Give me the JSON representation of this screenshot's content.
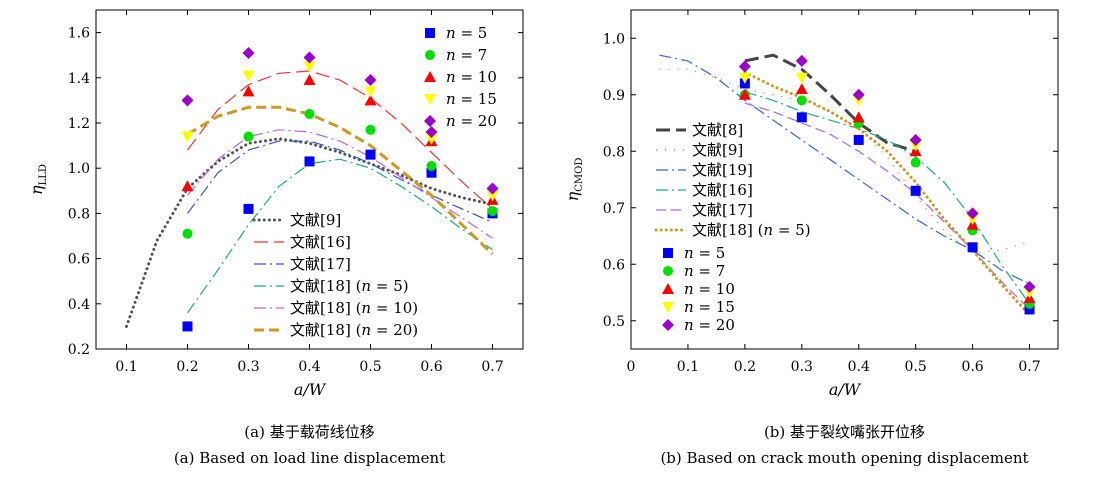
{
  "chart_data": [
    {
      "type": "scatter",
      "xlabel": "a/W",
      "ylabel": "η_LLD",
      "ylabel_main": "η",
      "ylabel_sub": "LLD",
      "xlim": [
        0.05,
        0.75
      ],
      "ylim": [
        0.2,
        1.7
      ],
      "xticks": [
        "0.1",
        "0.2",
        "0.3",
        "0.4",
        "0.5",
        "0.6",
        "0.7"
      ],
      "yticks": [
        "0.2",
        "0.4",
        "0.6",
        "0.8",
        "1.0",
        "1.2",
        "1.4",
        "1.6"
      ],
      "grid": false,
      "caption_cn": "(a) 基于载荷线位移",
      "caption_en": "(a) Based on load line displacement",
      "markers": [
        {
          "name": "n = 5",
          "label_var": "n",
          "label_val": "5",
          "shape": "square",
          "color": "#0000ff",
          "x": [
            0.2,
            0.3,
            0.4,
            0.5,
            0.6,
            0.7
          ],
          "y": [
            0.3,
            0.82,
            1.03,
            1.06,
            0.98,
            0.8
          ]
        },
        {
          "name": "n = 7",
          "label_var": "n",
          "label_val": "7",
          "shape": "circle",
          "color": "#00dd00",
          "x": [
            0.2,
            0.3,
            0.4,
            0.5,
            0.6,
            0.7
          ],
          "y": [
            0.71,
            1.14,
            1.24,
            1.17,
            1.01,
            0.81
          ]
        },
        {
          "name": "n = 10",
          "label_var": "n",
          "label_val": "10",
          "shape": "triangle",
          "color": "#ff0000",
          "x": [
            0.2,
            0.3,
            0.4,
            0.5,
            0.6,
            0.7
          ],
          "y": [
            0.92,
            1.34,
            1.39,
            1.3,
            1.12,
            0.86
          ]
        },
        {
          "name": "n = 15",
          "label_var": "n",
          "label_val": "15",
          "shape": "triangle-down",
          "color": "#ffff00",
          "x": [
            0.2,
            0.3,
            0.4,
            0.5,
            0.6,
            0.7
          ],
          "y": [
            1.14,
            1.41,
            1.45,
            1.34,
            1.13,
            0.88
          ]
        },
        {
          "name": "n = 20",
          "label_var": "n",
          "label_val": "20",
          "shape": "diamond",
          "color": "#9900cc",
          "x": [
            0.2,
            0.3,
            0.4,
            0.5,
            0.6,
            0.7
          ],
          "y": [
            1.3,
            1.51,
            1.49,
            1.39,
            1.16,
            0.91
          ]
        }
      ],
      "lines": [
        {
          "name": "文献[9]",
          "ref": "文献[9]",
          "suffix_var": "",
          "suffix_val": "",
          "color": "#555555",
          "style": "dotted",
          "width": 3,
          "x": [
            0.1,
            0.15,
            0.2,
            0.25,
            0.3,
            0.35,
            0.4,
            0.45,
            0.5,
            0.55,
            0.6,
            0.65,
            0.7
          ],
          "y": [
            0.3,
            0.68,
            0.91,
            1.03,
            1.11,
            1.13,
            1.11,
            1.07,
            1.02,
            0.97,
            0.91,
            0.87,
            0.84
          ]
        },
        {
          "name": "文献[16]",
          "ref": "文献[16]",
          "suffix_var": "",
          "suffix_val": "",
          "color": "#ee3333",
          "style": "longdash",
          "width": 1.2,
          "x": [
            0.2,
            0.25,
            0.3,
            0.35,
            0.4,
            0.45,
            0.5,
            0.55,
            0.6,
            0.65,
            0.7
          ],
          "y": [
            1.08,
            1.26,
            1.37,
            1.42,
            1.43,
            1.39,
            1.31,
            1.2,
            1.07,
            0.94,
            0.82
          ]
        },
        {
          "name": "文献[17]",
          "ref": "文献[17]",
          "suffix_var": "",
          "suffix_val": "",
          "color": "#3355cc",
          "style": "dashdot",
          "width": 1.2,
          "x": [
            0.2,
            0.25,
            0.3,
            0.35,
            0.4,
            0.45,
            0.5,
            0.55,
            0.6,
            0.65,
            0.7
          ],
          "y": [
            0.8,
            0.98,
            1.08,
            1.12,
            1.12,
            1.08,
            1.02,
            0.95,
            0.88,
            0.82,
            0.76
          ]
        },
        {
          "name": "文献[18] (n = 5)",
          "ref": "文献[18]",
          "suffix_var": "n",
          "suffix_val": "5",
          "color": "#22aa77",
          "style": "dashdot",
          "width": 1.2,
          "x": [
            0.2,
            0.25,
            0.3,
            0.35,
            0.4,
            0.45,
            0.5,
            0.55,
            0.6,
            0.65,
            0.7
          ],
          "y": [
            0.36,
            0.55,
            0.75,
            0.92,
            1.02,
            1.04,
            1.0,
            0.92,
            0.83,
            0.73,
            0.64
          ]
        },
        {
          "name": "文献[18] (n = 10)",
          "ref": "文献[18]",
          "suffix_var": "n",
          "suffix_val": "10",
          "color": "#bb66dd",
          "style": "dashdot",
          "width": 1.2,
          "x": [
            0.2,
            0.25,
            0.3,
            0.35,
            0.4,
            0.45,
            0.5,
            0.55,
            0.6,
            0.65,
            0.7
          ],
          "y": [
            0.88,
            1.04,
            1.14,
            1.17,
            1.16,
            1.12,
            1.05,
            0.96,
            0.87,
            0.78,
            0.69
          ]
        },
        {
          "name": "文献[18] (n = 20)",
          "ref": "文献[18]",
          "suffix_var": "n",
          "suffix_val": "20",
          "color": "#cc9922",
          "style": "dashed",
          "width": 3,
          "x": [
            0.2,
            0.25,
            0.3,
            0.35,
            0.4,
            0.45,
            0.5,
            0.55,
            0.6,
            0.65,
            0.7
          ],
          "y": [
            1.15,
            1.23,
            1.27,
            1.27,
            1.24,
            1.18,
            1.1,
            0.99,
            0.88,
            0.75,
            0.62
          ]
        }
      ]
    },
    {
      "type": "scatter",
      "xlabel": "a/W",
      "ylabel": "η_CMOD",
      "ylabel_main": "η",
      "ylabel_sub": "CMOD",
      "xlim": [
        0,
        0.75
      ],
      "ylim": [
        0.45,
        1.05
      ],
      "xticks": [
        "0",
        "0.1",
        "0.2",
        "0.3",
        "0.4",
        "0.5",
        "0.6",
        "0.7"
      ],
      "yticks": [
        "0.5",
        "0.6",
        "0.7",
        "0.8",
        "0.9",
        "1.0"
      ],
      "grid": false,
      "caption_cn": "(b) 基于裂纹嘴张开位移",
      "caption_en": "(b) Based on crack mouth opening displacement",
      "markers": [
        {
          "name": "n = 5",
          "label_var": "n",
          "label_val": "5",
          "shape": "square",
          "color": "#0000ff",
          "x": [
            0.2,
            0.3,
            0.4,
            0.5,
            0.6,
            0.7
          ],
          "y": [
            0.92,
            0.86,
            0.82,
            0.73,
            0.63,
            0.52
          ]
        },
        {
          "name": "n = 7",
          "label_var": "n",
          "label_val": "7",
          "shape": "circle",
          "color": "#00dd00",
          "x": [
            0.2,
            0.3,
            0.4,
            0.5,
            0.6,
            0.7
          ],
          "y": [
            0.9,
            0.89,
            0.85,
            0.78,
            0.66,
            0.53
          ]
        },
        {
          "name": "n = 10",
          "label_var": "n",
          "label_val": "10",
          "shape": "triangle",
          "color": "#ff0000",
          "x": [
            0.2,
            0.3,
            0.4,
            0.5,
            0.6,
            0.7
          ],
          "y": [
            0.9,
            0.91,
            0.86,
            0.8,
            0.67,
            0.54
          ]
        },
        {
          "name": "n = 15",
          "label_var": "n",
          "label_val": "15",
          "shape": "triangle-down",
          "color": "#ffff00",
          "x": [
            0.2,
            0.3,
            0.4,
            0.5,
            0.6,
            0.7
          ],
          "y": [
            0.93,
            0.93,
            0.89,
            0.81,
            0.68,
            0.55
          ]
        },
        {
          "name": "n = 20",
          "label_var": "n",
          "label_val": "20",
          "shape": "diamond",
          "color": "#9900cc",
          "x": [
            0.2,
            0.3,
            0.4,
            0.5,
            0.6,
            0.7
          ],
          "y": [
            0.95,
            0.96,
            0.9,
            0.82,
            0.69,
            0.56
          ]
        }
      ],
      "lines": [
        {
          "name": "文献[8]",
          "ref": "文献[8]",
          "suffix_var": "",
          "suffix_val": "",
          "color": "#444444",
          "style": "longdash",
          "width": 3,
          "x": [
            0.2,
            0.25,
            0.3,
            0.35,
            0.4,
            0.45,
            0.5
          ],
          "y": [
            0.96,
            0.97,
            0.945,
            0.9,
            0.85,
            0.815,
            0.8
          ]
        },
        {
          "name": "文献[9]",
          "ref": "文献[9]",
          "suffix_var": "",
          "suffix_val": "",
          "color": "#dd5566",
          "style": "sparsedot",
          "width": 1.2,
          "x": [
            0.05,
            0.1,
            0.15,
            0.2,
            0.25,
            0.3,
            0.35,
            0.4,
            0.45,
            0.5,
            0.55,
            0.6,
            0.65,
            0.7
          ],
          "y": [
            0.945,
            0.945,
            0.93,
            0.91,
            0.9,
            0.89,
            0.87,
            0.84,
            0.79,
            0.72,
            0.66,
            0.62,
            0.625,
            0.64
          ]
        },
        {
          "name": "文献[19]",
          "ref": "文献[19]",
          "suffix_var": "",
          "suffix_val": "",
          "color": "#3366cc",
          "style": "dashdot",
          "width": 1.2,
          "x": [
            0.05,
            0.1,
            0.15,
            0.2,
            0.25,
            0.3,
            0.35,
            0.4,
            0.45,
            0.5,
            0.55,
            0.6,
            0.65,
            0.7
          ],
          "y": [
            0.97,
            0.96,
            0.93,
            0.89,
            0.855,
            0.82,
            0.785,
            0.75,
            0.715,
            0.68,
            0.65,
            0.625,
            0.59,
            0.565
          ]
        },
        {
          "name": "文献[16]",
          "ref": "文献[16]",
          "suffix_var": "",
          "suffix_val": "",
          "color": "#22aa77",
          "style": "dashdot",
          "width": 1.2,
          "x": [
            0.2,
            0.25,
            0.3,
            0.35,
            0.4,
            0.45,
            0.5,
            0.55,
            0.6,
            0.65,
            0.7
          ],
          "y": [
            0.905,
            0.89,
            0.87,
            0.855,
            0.84,
            0.82,
            0.79,
            0.745,
            0.68,
            0.6,
            0.53
          ]
        },
        {
          "name": "文献[17]",
          "ref": "文献[17]",
          "suffix_var": "",
          "suffix_val": "",
          "color": "#aa66dd",
          "style": "dashed",
          "width": 1.2,
          "x": [
            0.2,
            0.25,
            0.3,
            0.35,
            0.4,
            0.45,
            0.5,
            0.55,
            0.6,
            0.65,
            0.7
          ],
          "y": [
            0.885,
            0.87,
            0.85,
            0.83,
            0.8,
            0.765,
            0.725,
            0.675,
            0.625,
            0.57,
            0.52
          ]
        },
        {
          "name": "文献[18] (n = 5)",
          "ref": "文献[18]",
          "suffix_var": "n",
          "suffix_val": "5",
          "color": "#cc9922",
          "style": "dotted",
          "width": 3,
          "x": [
            0.2,
            0.25,
            0.3,
            0.35,
            0.4,
            0.45,
            0.5,
            0.55,
            0.6,
            0.65,
            0.7
          ],
          "y": [
            0.94,
            0.915,
            0.895,
            0.87,
            0.84,
            0.8,
            0.745,
            0.68,
            0.625,
            0.565,
            0.51
          ]
        }
      ]
    }
  ]
}
